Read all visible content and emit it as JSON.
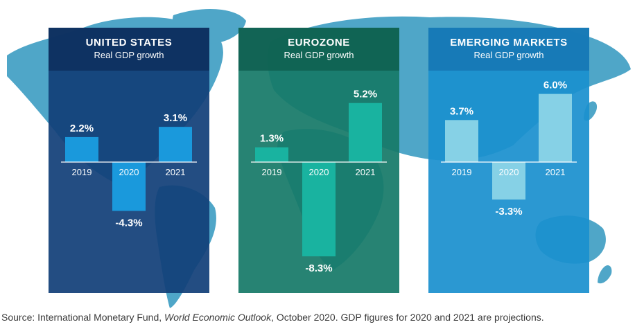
{
  "source": {
    "prefix": "Source: International Monetary Fund, ",
    "publication": "World Economic Outlook",
    "suffix": ", October 2020. GDP figures for 2020 and 2021 are projections."
  },
  "colors": {
    "map": "#4fa6c8",
    "us_panel": "#123f78",
    "us_header": "#0d2f5d",
    "us_bar": "#1a99dc",
    "ez_panel": "#177a68",
    "ez_header": "#0f5f50",
    "ez_bar": "#19b3a0",
    "em_panel": "#1b90cf",
    "em_header": "#1676b3",
    "em_bar": "#86d1e6"
  },
  "chart_data": [
    {
      "type": "bar",
      "title": "UNITED STATES",
      "subtitle": "Real GDP growth",
      "categories": [
        "2019",
        "2020",
        "2021"
      ],
      "values": [
        2.2,
        -4.3,
        3.1
      ],
      "value_labels": [
        "2.2%",
        "-4.3%",
        "3.1%"
      ]
    },
    {
      "type": "bar",
      "title": "EUROZONE",
      "subtitle": "Real GDP growth",
      "categories": [
        "2019",
        "2020",
        "2021"
      ],
      "values": [
        1.3,
        -8.3,
        5.2
      ],
      "value_labels": [
        "1.3%",
        "-8.3%",
        "5.2%"
      ]
    },
    {
      "type": "bar",
      "title": "EMERGING MARKETS",
      "subtitle": "Real GDP growth",
      "categories": [
        "2019",
        "2020",
        "2021"
      ],
      "values": [
        3.7,
        -3.3,
        6.0
      ],
      "value_labels": [
        "3.7%",
        "-3.3%",
        "6.0%"
      ]
    }
  ]
}
